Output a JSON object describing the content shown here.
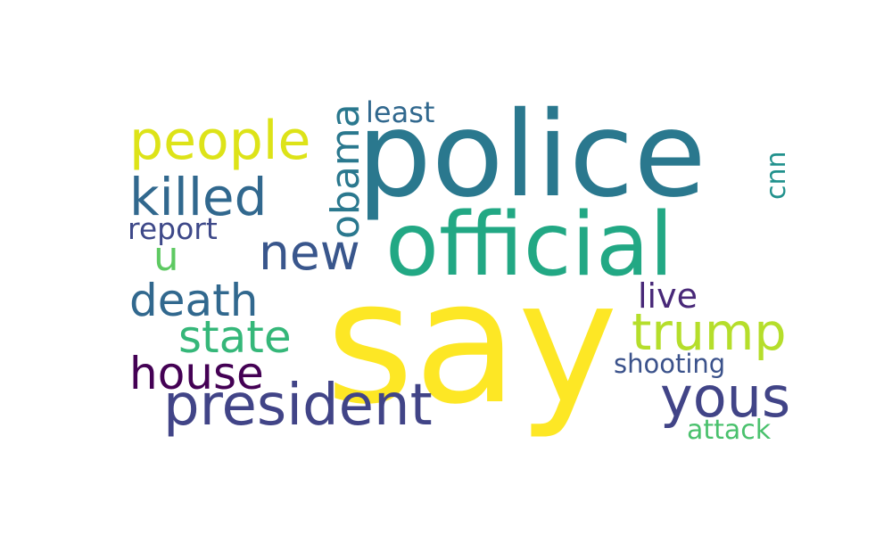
{
  "words": [
    {
      "id": "say",
      "text": "say",
      "color": "#fde725"
    },
    {
      "id": "police",
      "text": "police",
      "color": "#2a788e"
    },
    {
      "id": "official",
      "text": "official",
      "color": "#22a884"
    },
    {
      "id": "people",
      "text": "people",
      "color": "#dde318"
    },
    {
      "id": "president",
      "text": "president",
      "color": "#414487"
    },
    {
      "id": "killed",
      "text": "killed",
      "color": "#31688e"
    },
    {
      "id": "new",
      "text": "new",
      "color": "#39568c"
    },
    {
      "id": "trump",
      "text": "trump",
      "color": "#b5de2b"
    },
    {
      "id": "yous",
      "text": "yous",
      "color": "#414487"
    },
    {
      "id": "death",
      "text": "death",
      "color": "#31688e"
    },
    {
      "id": "state",
      "text": "state",
      "color": "#35b779"
    },
    {
      "id": "house",
      "text": "house",
      "color": "#440154"
    },
    {
      "id": "obama",
      "text": "obama",
      "color": "#2a788e"
    },
    {
      "id": "least",
      "text": "least",
      "color": "#31688e"
    },
    {
      "id": "live",
      "text": "live",
      "color": "#482878"
    },
    {
      "id": "report",
      "text": "report",
      "color": "#3e4989"
    },
    {
      "id": "u",
      "text": "u",
      "color": "#5ec962"
    },
    {
      "id": "cnn",
      "text": "cnn",
      "color": "#21918c"
    },
    {
      "id": "shooting",
      "text": "shooting",
      "color": "#3b528b"
    },
    {
      "id": "attack",
      "text": "attack",
      "color": "#4ac16d"
    }
  ]
}
